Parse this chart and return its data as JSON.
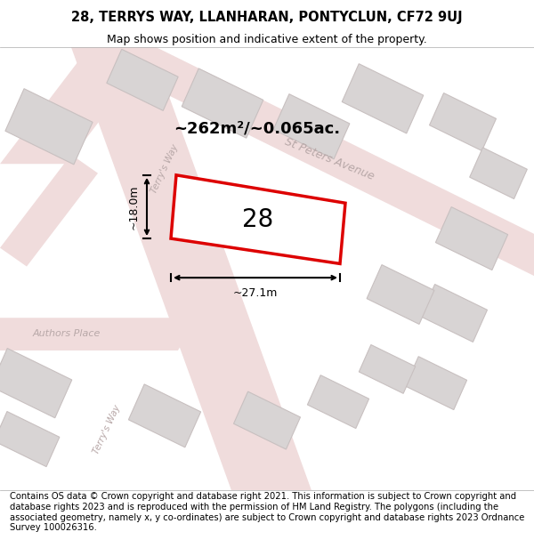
{
  "title": "28, TERRYS WAY, LLANHARAN, PONTYCLUN, CF72 9UJ",
  "subtitle": "Map shows position and indicative extent of the property.",
  "footer": "Contains OS data © Crown copyright and database right 2021. This information is subject to Crown copyright and database rights 2023 and is reproduced with the permission of HM Land Registry. The polygons (including the associated geometry, namely x, y co-ordinates) are subject to Crown copyright and database rights 2023 Ordnance Survey 100026316.",
  "area_label": "~262m²/~0.065ac.",
  "width_label": "~27.1m",
  "height_label": "~18.0m",
  "plot_number": "28",
  "map_bg": "#f2eded",
  "road_fill": "#f0dcdc",
  "road_edge": "#e8c8c8",
  "building_fill": "#d8d4d4",
  "building_edge": "#c8c0c0",
  "red_plot_color": "#dd0000",
  "title_fontsize": 10.5,
  "subtitle_fontsize": 9,
  "footer_fontsize": 7.2,
  "area_fontsize": 13,
  "label_fontsize": 8.5,
  "road_label_color": "#b8a8a8",
  "dim_fontsize": 9
}
